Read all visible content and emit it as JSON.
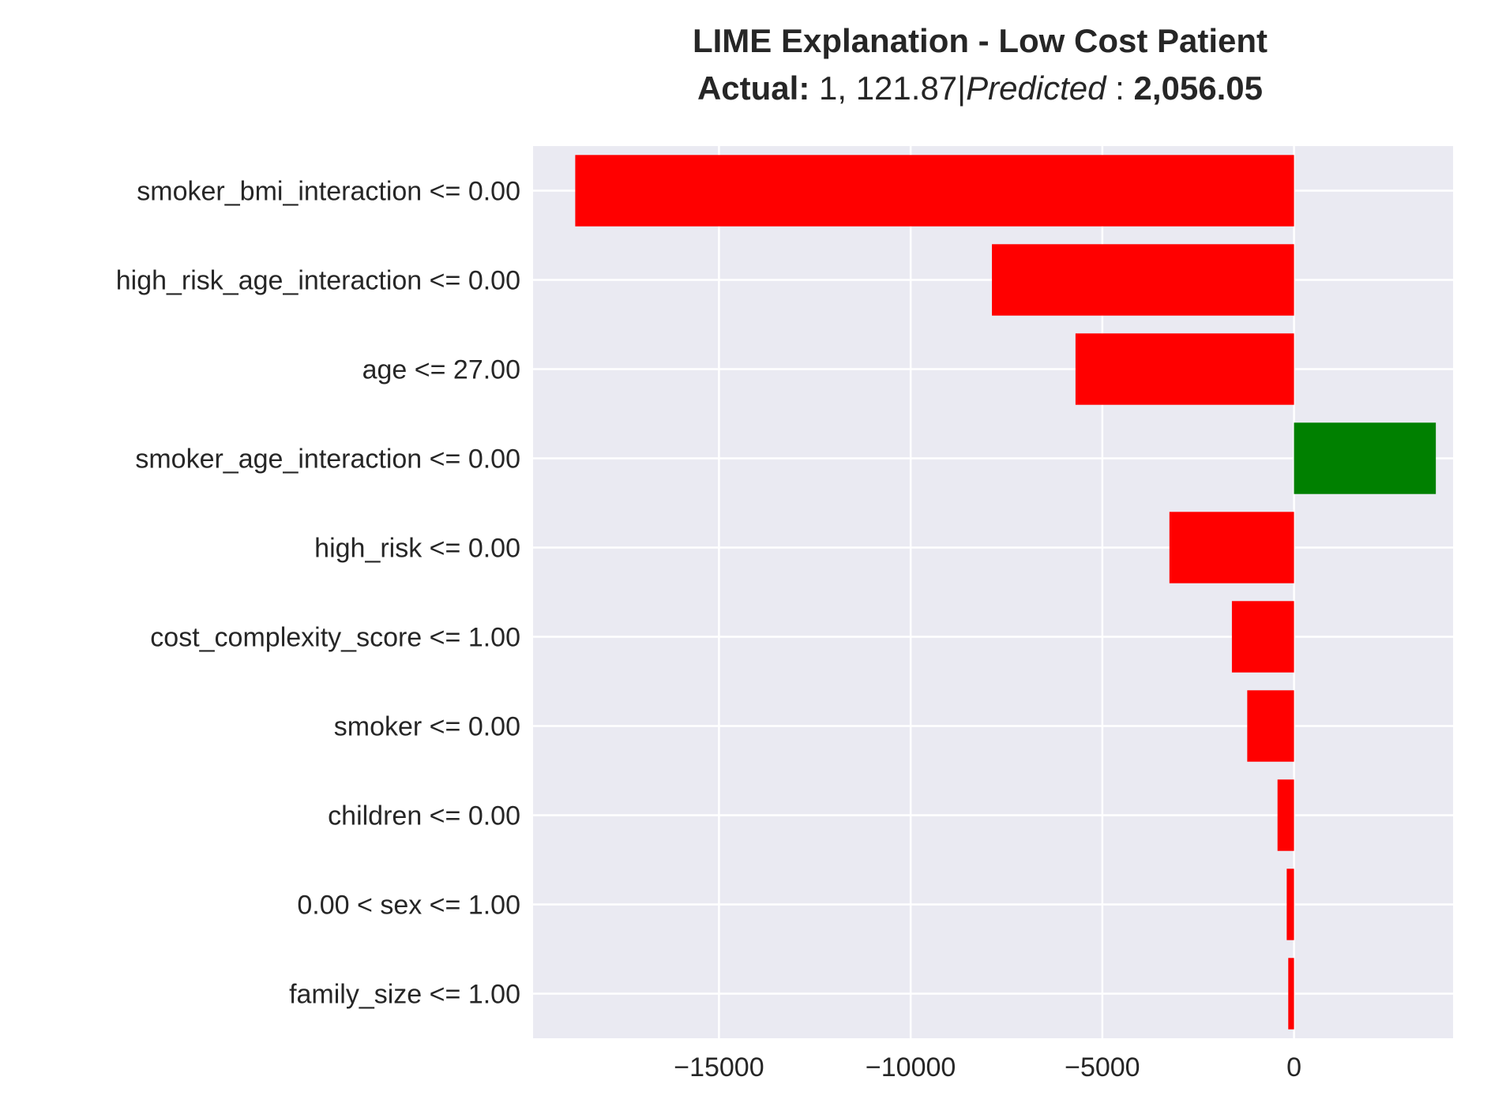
{
  "chart_data": {
    "type": "bar",
    "orientation": "horizontal",
    "title": {
      "line1": "LIME Explanation - Low Cost Patient",
      "actual_label": "Actual:",
      "actual_value": " 1, 121.87|",
      "predicted_label": "Predicted",
      "predicted_sep": " : ",
      "predicted_value": "2,056.05"
    },
    "xlabel": "",
    "ylabel": "",
    "categories": [
      "smoker_bmi_interaction <= 0.00",
      "high_risk_age_interaction <= 0.00",
      "age <= 27.00",
      "smoker_age_interaction <= 0.00",
      "high_risk <= 0.00",
      "cost_complexity_score <= 1.00",
      "smoker <= 0.00",
      "children <= 0.00",
      "0.00 < sex <= 1.00",
      "family_size <= 1.00"
    ],
    "values": [
      -18750,
      -7880,
      -5700,
      3700,
      -3250,
      -1620,
      -1220,
      -430,
      -190,
      -150
    ],
    "xlim": [
      -19850,
      4150
    ],
    "xticks": [
      -15000,
      -10000,
      -5000,
      0
    ],
    "xtick_labels": [
      "−15000",
      "−10000",
      "−5000",
      "0"
    ],
    "positive_color": "#008000",
    "negative_color": "#ff0000",
    "background_color": "#eaeaf2",
    "grid": true
  }
}
